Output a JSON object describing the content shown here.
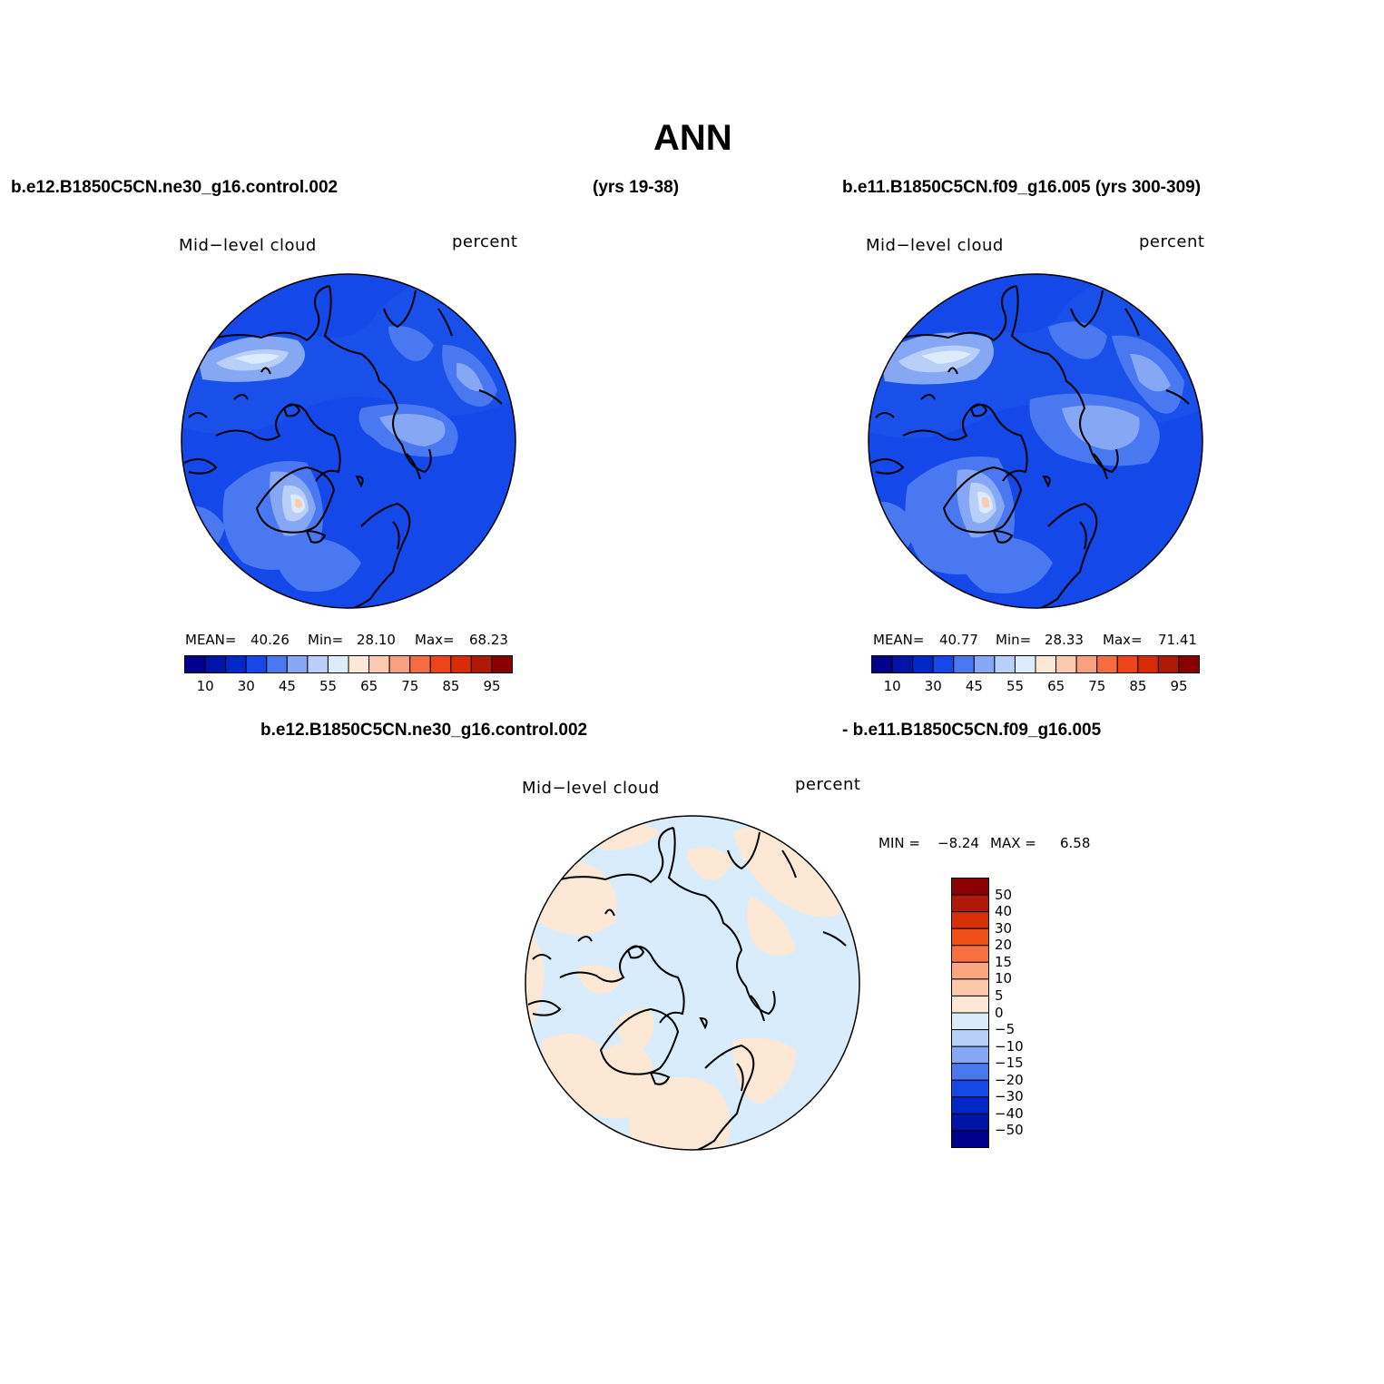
{
  "page": {
    "title": "ANN",
    "left_case": "b.e12.B1850C5CN.ne30_g16.control.002",
    "left_years": "(yrs 19-38)",
    "right_case": "b.e11.B1850C5CN.f09_g16.005 (yrs 300-309)",
    "diff_case_a": "b.e12.B1850C5CN.ne30_g16.control.002",
    "diff_case_b": "- b.e11.B1850C5CN.f09_g16.005"
  },
  "panels": [
    {
      "id": "case1",
      "variable": "Mid−level cloud",
      "units": "percent",
      "stats": {
        "mean_label": "MEAN=",
        "mean": "40.26",
        "min_label": "Min=",
        "min": "28.10",
        "max_label": "Max=",
        "max": "68.23"
      }
    },
    {
      "id": "case2",
      "variable": "Mid−level cloud",
      "units": "percent",
      "stats": {
        "mean_label": "MEAN=",
        "mean": "40.77",
        "min_label": "Min=",
        "min": "28.33",
        "max_label": "Max=",
        "max": "71.41"
      }
    },
    {
      "id": "difference",
      "variable": "Mid−level cloud",
      "units": "percent",
      "stats": {
        "min_label": "MIN =",
        "min": "−8.24",
        "max_label": "MAX =",
        "max": "6.58"
      }
    }
  ],
  "colorbar_main": {
    "colors": [
      "#00008c",
      "#0014a8",
      "#0028c8",
      "#1448e8",
      "#4a78f0",
      "#86a8f4",
      "#b8d0f8",
      "#dcecfc",
      "#fde8d6",
      "#fccab0",
      "#f8a080",
      "#f46c40",
      "#ee4418",
      "#d82c08",
      "#b01808",
      "#8a0000"
    ],
    "labels": [
      "10",
      "30",
      "45",
      "55",
      "65",
      "75",
      "85",
      "95"
    ]
  },
  "colorbar_diff": {
    "colors": [
      "#8a0000",
      "#b01808",
      "#d83006",
      "#f05018",
      "#f87040",
      "#fca680",
      "#fcc8a8",
      "#fde8d6",
      "#d8ecfc",
      "#b8d0f8",
      "#86a8f4",
      "#4a78f0",
      "#1448e8",
      "#0028c8",
      "#0014a8",
      "#00008c"
    ],
    "labels": [
      "50",
      "40",
      "30",
      "20",
      "15",
      "10",
      "5",
      "0",
      "−5",
      "−10",
      "−15",
      "−20",
      "−30",
      "−40",
      "−50"
    ]
  }
}
